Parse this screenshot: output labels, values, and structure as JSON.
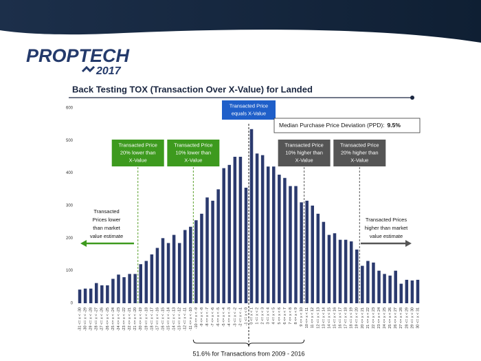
{
  "logo": {
    "name": "PROPTECH",
    "year": "2017"
  },
  "chart_data": {
    "type": "bar",
    "title": "Back Testing TOX (Transaction Over X-Value) for Landed",
    "categories": [
      "-31 <= x < -30",
      "-30 <= x < -29",
      "-29 <= x < -28",
      "-28 <= x < -27",
      "-27 <= x < -26",
      "-26 <= x < -25",
      "-25 <= x < -24",
      "-24 <= x < -23",
      "-23 <= x < -22",
      "-22 <= x < -21",
      "-21 <= x < -20",
      "-20 <= x < -19",
      "-19 <= x < -18",
      "-18 <= x < -17",
      "-17 <= x < -16",
      "-16 <= x < -15",
      "-15 <= x < -14",
      "-14 <= x < -13",
      "-13 <= x < -12",
      "-12 <= x < -11",
      "-11 <= x < -10",
      "-10 <= x < -9",
      "-9 <= x < -8",
      "-8 <= x < -7",
      "-7 <= x < -6",
      "-6 <= x < -5",
      "-5 <= x < -4",
      "-4 <= x < -3",
      "-3 <= x < -2",
      "-2 <= x < -1",
      "-1 <= x < 0",
      "0 <= x < 1",
      "1 <= x < 2",
      "2 <= x < 3",
      "3 <= x < 4",
      "4 <= x < 5",
      "5 <= x < 6",
      "6 <= x < 7",
      "7 <= x < 8",
      "8 <= x < 9",
      "9 <= x < 10",
      "10 <= x < 11",
      "11 <= x < 12",
      "12 <= x < 13",
      "13 <= x < 14",
      "14 <= x < 15",
      "15 <= x < 16",
      "16 <= x < 17",
      "17 <= x < 18",
      "18 <= x < 19",
      "19 <= x < 20",
      "20 <= x < 21",
      "21 <= x < 22",
      "22 <= x < 23",
      "23 <= x < 24",
      "24 <= x < 25",
      "25 <= x < 26",
      "26 <= x < 27",
      "27 <= x < 28",
      "28 <= x < 29",
      "29 <= x < 30",
      "30 <= x < 31"
    ],
    "values": [
      42,
      45,
      45,
      62,
      55,
      55,
      75,
      88,
      80,
      90,
      90,
      120,
      130,
      150,
      170,
      200,
      185,
      210,
      185,
      225,
      235,
      255,
      275,
      325,
      315,
      350,
      415,
      425,
      450,
      450,
      355,
      535,
      460,
      455,
      420,
      420,
      395,
      385,
      360,
      360,
      310,
      315,
      300,
      275,
      250,
      210,
      215,
      195,
      195,
      190,
      165,
      115,
      130,
      125,
      100,
      90,
      85,
      100,
      60,
      72,
      70,
      72
    ],
    "color": "#2b3a6e",
    "ylim": [
      0,
      600
    ],
    "yticks": [
      0,
      100,
      200,
      300,
      400,
      500,
      600
    ],
    "annotations": {
      "lower20": [
        "Transacted Price",
        "20% lower than",
        "X-Value"
      ],
      "lower10": [
        "Transacted Price",
        "10% lower than",
        "X-Value"
      ],
      "equal": [
        "Transacted Price",
        "equals X-Value"
      ],
      "higher10": [
        "Transacted Price",
        "10% higher than",
        "X-Value"
      ],
      "higher20": [
        "Transacted Price",
        "20% higher than",
        "X-Value"
      ],
      "ppd_label": "Median Purchase Price Deviation (PPD):",
      "ppd_value": "9.5%",
      "lower_text": [
        "Transacted",
        "Prices lower",
        "than market",
        "value estimate"
      ],
      "higher_text": [
        "Transacted Prices",
        "higher than market",
        "value estimate"
      ],
      "footer": "51.6% for Transactions from 2009 - 2016"
    }
  }
}
